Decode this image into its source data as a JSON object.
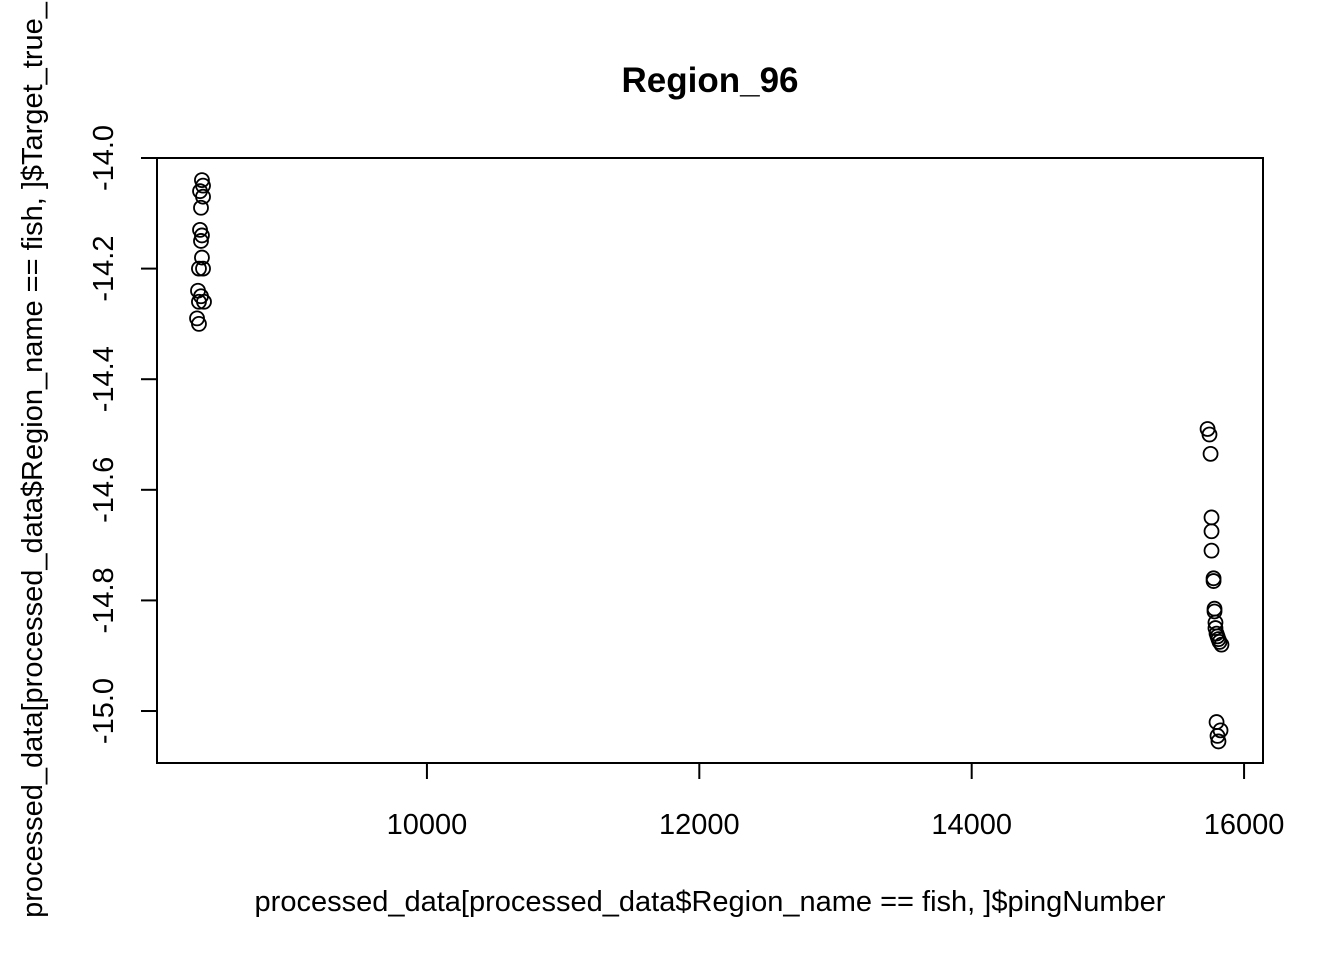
{
  "chart_data": {
    "type": "scatter",
    "title": "Region_96",
    "x_label": "processed_data[processed_data$Region_name == fish, ]$pingNumber",
    "y_label": "processed_data[processed_data$Region_name == fish, ]$Target_true_",
    "x": [
      8348,
      8356,
      8334,
      8356,
      8341,
      8334,
      8348,
      8341,
      8348,
      8326,
      8356,
      8319,
      8341,
      8363,
      8326,
      8312,
      8326,
      15732,
      15746,
      15754,
      15761,
      15761,
      15761,
      15776,
      15776,
      15783,
      15783,
      15790,
      15790,
      15798,
      15805,
      15812,
      15820,
      15834,
      15798,
      15827,
      15805,
      15812
    ],
    "y": [
      -14.04,
      -14.05,
      -14.06,
      -14.07,
      -14.09,
      -14.13,
      -14.14,
      -14.15,
      -14.18,
      -14.2,
      -14.2,
      -14.24,
      -14.25,
      -14.26,
      -14.26,
      -14.29,
      -14.3,
      -14.49,
      -14.5,
      -14.535,
      -14.65,
      -14.675,
      -14.71,
      -14.76,
      -14.765,
      -14.815,
      -14.82,
      -14.84,
      -14.85,
      -14.86,
      -14.865,
      -14.87,
      -14.875,
      -14.88,
      -15.02,
      -15.035,
      -15.045,
      -15.055
    ],
    "color": "#000000",
    "xlim": [
      8018,
      16139
    ],
    "ylim": [
      -15.094,
      -14.0
    ],
    "xticks": [
      10000,
      12000,
      14000,
      16000
    ],
    "yticks": [
      {
        "value": -14.0,
        "label": "-14.0"
      },
      {
        "value": -14.2,
        "label": "-14.2"
      },
      {
        "value": -14.4,
        "label": "-14.4"
      },
      {
        "value": -14.6,
        "label": "-14.6"
      },
      {
        "value": -14.8,
        "label": "-14.8"
      },
      {
        "value": -15.0,
        "label": "-15.0"
      }
    ]
  }
}
